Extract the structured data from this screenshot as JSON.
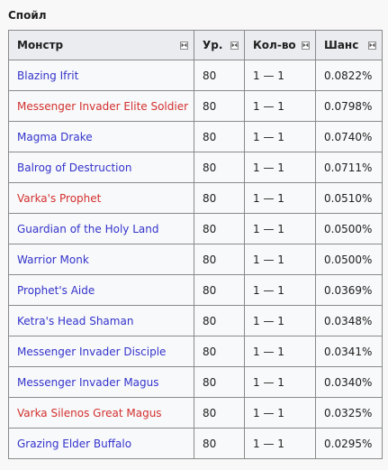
{
  "section": {
    "title": "Спойл"
  },
  "colors": {
    "link": "#3333cc",
    "red_link": "#d33030"
  },
  "table": {
    "headers": [
      {
        "label": "Монстр",
        "icon": "sort-icon"
      },
      {
        "label": "Ур.",
        "icon": "sort-icon"
      },
      {
        "label": "Кол-во",
        "icon": "sort-icon"
      },
      {
        "label": "Шанс",
        "icon": "sort-icon"
      }
    ],
    "rows": [
      {
        "monster": "Blazing Ifrit",
        "red": false,
        "level": "80",
        "qty": "1 — 1",
        "chance": "0.0822%"
      },
      {
        "monster": "Messenger Invader Elite Soldier",
        "red": true,
        "level": "80",
        "qty": "1 — 1",
        "chance": "0.0798%"
      },
      {
        "monster": "Magma Drake",
        "red": false,
        "level": "80",
        "qty": "1 — 1",
        "chance": "0.0740%"
      },
      {
        "monster": "Balrog of Destruction",
        "red": false,
        "level": "80",
        "qty": "1 — 1",
        "chance": "0.0711%"
      },
      {
        "monster": "Varka's Prophet",
        "red": true,
        "level": "80",
        "qty": "1 — 1",
        "chance": "0.0510%"
      },
      {
        "monster": "Guardian of the Holy Land",
        "red": false,
        "level": "80",
        "qty": "1 — 1",
        "chance": "0.0500%"
      },
      {
        "monster": "Warrior Monk",
        "red": false,
        "level": "80",
        "qty": "1 — 1",
        "chance": "0.0500%"
      },
      {
        "monster": "Prophet's Aide",
        "red": false,
        "level": "80",
        "qty": "1 — 1",
        "chance": "0.0369%"
      },
      {
        "monster": "Ketra's Head Shaman",
        "red": false,
        "level": "80",
        "qty": "1 — 1",
        "chance": "0.0348%"
      },
      {
        "monster": "Messenger Invader Disciple",
        "red": false,
        "level": "80",
        "qty": "1 — 1",
        "chance": "0.0341%"
      },
      {
        "monster": "Messenger Invader Magus",
        "red": false,
        "level": "80",
        "qty": "1 — 1",
        "chance": "0.0340%"
      },
      {
        "monster": "Varka Silenos Great Magus",
        "red": true,
        "level": "80",
        "qty": "1 — 1",
        "chance": "0.0325%"
      },
      {
        "monster": "Grazing Elder Buffalo",
        "red": false,
        "level": "80",
        "qty": "1 — 1",
        "chance": "0.0295%"
      }
    ]
  }
}
